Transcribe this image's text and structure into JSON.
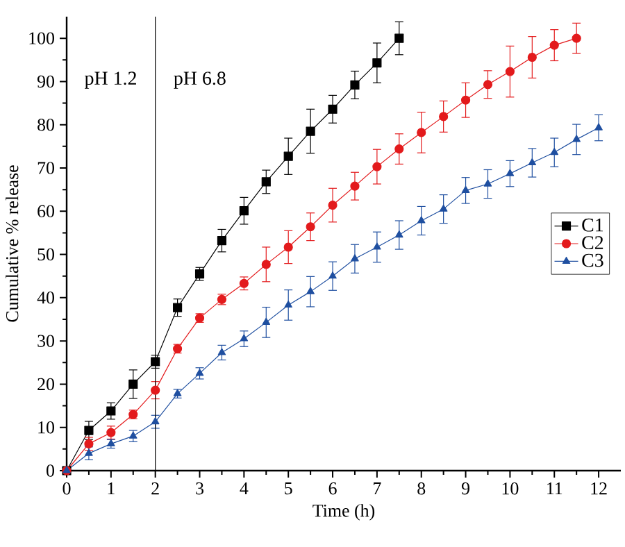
{
  "chart_data": {
    "type": "line",
    "xlabel": "Time (h)",
    "ylabel": "Cumulative % release",
    "xlim": [
      0,
      12.5
    ],
    "ylim": [
      0,
      105
    ],
    "xticks": [
      0,
      1,
      2,
      3,
      4,
      5,
      6,
      7,
      8,
      9,
      10,
      11,
      12
    ],
    "yticks": [
      0,
      10,
      20,
      30,
      40,
      50,
      60,
      70,
      80,
      90,
      100
    ],
    "legend": "right",
    "grid": false,
    "ref_lines": [
      {
        "axis": "x",
        "value": 2,
        "color": "#000000",
        "line_style": "solid"
      }
    ],
    "annotations": [
      "pH 1.2",
      "pH 6.8"
    ],
    "series": [
      {
        "name": "C1",
        "color": "#000000",
        "marker": "square",
        "x": [
          0,
          0.5,
          1,
          1.5,
          2,
          2.5,
          3,
          3.5,
          4,
          4.5,
          5,
          5.5,
          6,
          6.5,
          7,
          7.5
        ],
        "values": [
          0,
          9.3,
          13.8,
          20,
          25.2,
          37.7,
          45.5,
          53.2,
          60.1,
          66.8,
          72.7,
          78.5,
          83.6,
          89.2,
          94.3,
          100
        ],
        "errors": [
          0,
          2.1,
          1.9,
          3.3,
          1.5,
          2,
          1.5,
          2.6,
          3.1,
          2.7,
          4.2,
          5.1,
          3.2,
          3.2,
          4.6,
          3.8
        ]
      },
      {
        "name": "C2",
        "color": "#e31a1c",
        "marker": "circle",
        "x": [
          0,
          0.5,
          1,
          1.5,
          2,
          2.5,
          3,
          3.5,
          4,
          4.5,
          5,
          5.5,
          6,
          6.5,
          7,
          7.5,
          8,
          8.5,
          9,
          9.5,
          10,
          10.5,
          11,
          11.5
        ],
        "values": [
          0,
          6.2,
          8.8,
          13,
          18.6,
          28.2,
          35.3,
          39.6,
          43.3,
          47.7,
          51.7,
          56.4,
          61.4,
          65.8,
          70.3,
          74.4,
          78.2,
          81.9,
          85.7,
          89.3,
          92.3,
          95.6,
          98.4,
          100
        ],
        "errors": [
          0,
          1.5,
          1.5,
          1,
          2,
          1,
          1,
          1.2,
          1.5,
          4,
          3.8,
          3.2,
          3.9,
          3.2,
          4,
          3.5,
          4.7,
          3.6,
          4,
          3.2,
          5.9,
          4.8,
          3.6,
          3.5
        ]
      },
      {
        "name": "C3",
        "color": "#1f4fa0",
        "marker": "triangle",
        "x": [
          0,
          0.5,
          1,
          1.5,
          2,
          2.5,
          3,
          3.5,
          4,
          4.5,
          5,
          5.5,
          6,
          6.5,
          7,
          7.5,
          8,
          8.5,
          9,
          9.5,
          10,
          10.5,
          11,
          11.5,
          12
        ],
        "values": [
          0,
          4,
          6.2,
          8,
          11.3,
          17.8,
          22.5,
          27.3,
          30.5,
          34.3,
          38.3,
          41.4,
          45,
          49,
          51.7,
          54.5,
          57.8,
          60.5,
          64.8,
          66.3,
          68.7,
          71.2,
          73.6,
          76.6,
          79.3
        ],
        "errors": [
          0,
          1.5,
          1,
          1.3,
          1.5,
          1,
          1.3,
          1.7,
          1.8,
          3.5,
          3.5,
          3.5,
          3.3,
          3.3,
          3.5,
          3.3,
          3.3,
          3.3,
          3,
          3.3,
          3,
          3.3,
          3.3,
          3.5,
          3
        ]
      }
    ]
  }
}
